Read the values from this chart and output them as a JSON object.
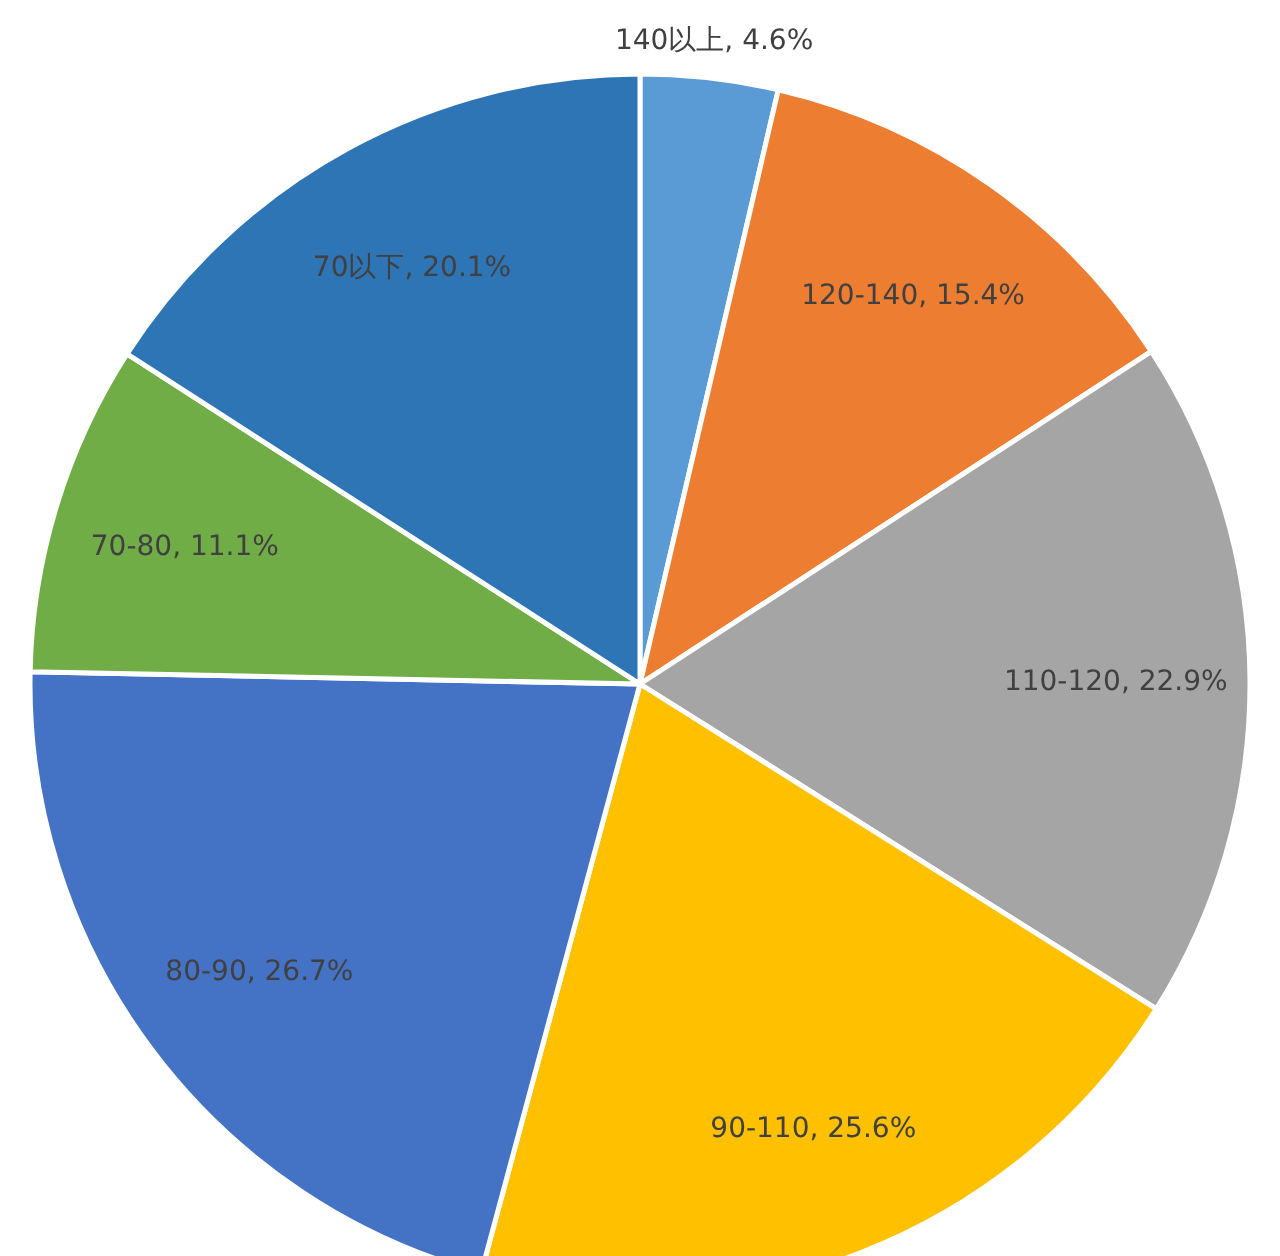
{
  "chart_data": {
    "type": "pie",
    "categories": [
      "140以上",
      "120-140",
      "110-120",
      "90-110",
      "80-90",
      "70-80",
      "70以下"
    ],
    "values": [
      4.6,
      15.4,
      22.9,
      25.6,
      26.7,
      11.1,
      20.1
    ],
    "value_labels": [
      "4.6%",
      "15.4%",
      "22.9%",
      "25.6%",
      "26.7%",
      "11.1%",
      "20.1%"
    ],
    "colors": [
      "#5b9bd5",
      "#ed7d31",
      "#a5a5a5",
      "#ffc000",
      "#4472c4",
      "#70ad47",
      "#2e75b6"
    ],
    "legend": false
  }
}
